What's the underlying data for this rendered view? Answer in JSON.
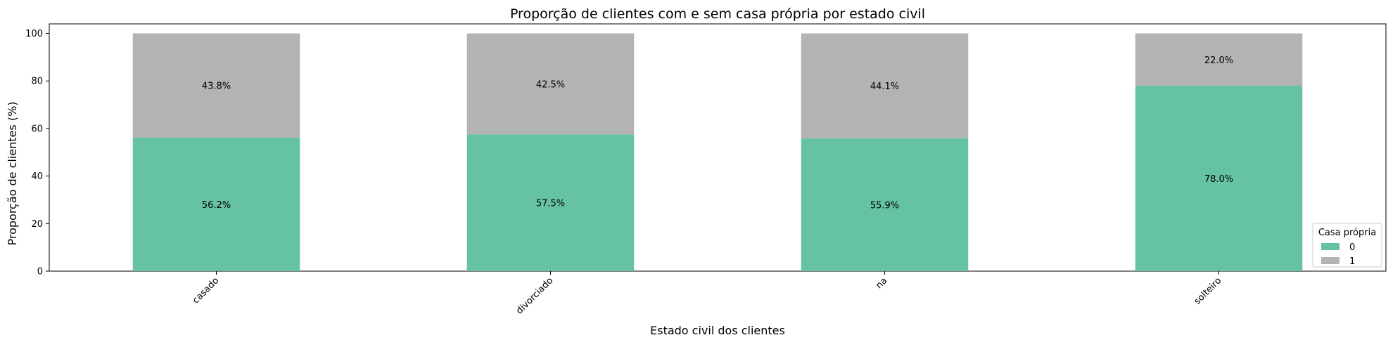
{
  "chart_data": {
    "type": "bar",
    "stacked": true,
    "title": "Proporção de clientes com e sem casa própria por estado civil",
    "xlabel": "Estado civil dos clientes",
    "ylabel": "Proporção de clientes (%)",
    "categories": [
      "casado",
      "divorciado",
      "na",
      "solteiro"
    ],
    "ylim": [
      0,
      104
    ],
    "yticks": [
      0,
      20,
      40,
      60,
      80,
      100
    ],
    "series": [
      {
        "name": "0",
        "values": [
          56.2,
          57.5,
          55.9,
          78.0
        ],
        "labels": [
          "56.2%",
          "57.5%",
          "55.9%",
          "78.0%"
        ],
        "color": "#66c2a5"
      },
      {
        "name": "1",
        "values": [
          43.8,
          42.5,
          44.1,
          22.0
        ],
        "labels": [
          "43.8%",
          "42.5%",
          "44.1%",
          "22.0%"
        ],
        "color": "#b3b3b3"
      }
    ],
    "legend": {
      "title": "Casa própria",
      "position": "lower-right"
    },
    "grid": false
  }
}
